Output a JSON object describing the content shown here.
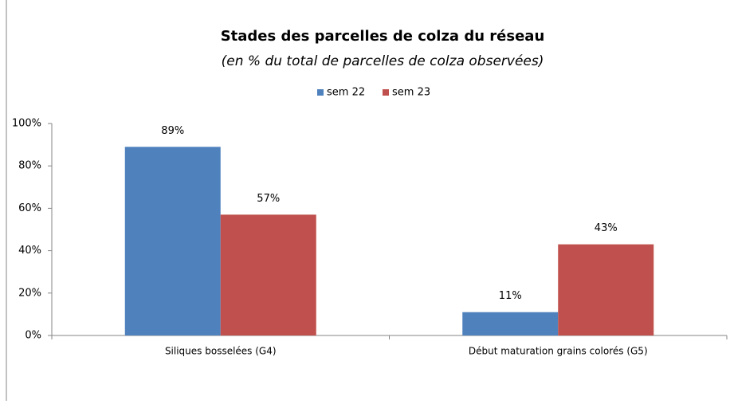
{
  "chart_data": {
    "type": "bar",
    "title": "Stades des parcelles de colza du réseau",
    "subtitle": "(en %  du total de parcelles de colza observées)",
    "categories": [
      "Siliques bosselées (G4)",
      "Début maturation grains colorés (G5)"
    ],
    "series": [
      {
        "name": "sem 22",
        "color": "#4f81bd",
        "values": [
          89,
          11
        ],
        "value_labels": [
          "89%",
          "11%"
        ]
      },
      {
        "name": "sem 23",
        "color": "#c0504d",
        "values": [
          57,
          43
        ],
        "value_labels": [
          "57%",
          "43%"
        ]
      }
    ],
    "ylim": [
      0,
      100
    ],
    "yticks": [
      {
        "value": 0,
        "label": "0%"
      },
      {
        "value": 20,
        "label": "20%"
      },
      {
        "value": 40,
        "label": "40%"
      },
      {
        "value": 60,
        "label": "60%"
      },
      {
        "value": 80,
        "label": "80%"
      },
      {
        "value": 100,
        "label": "100%"
      }
    ],
    "grid": false,
    "legend": "top"
  }
}
